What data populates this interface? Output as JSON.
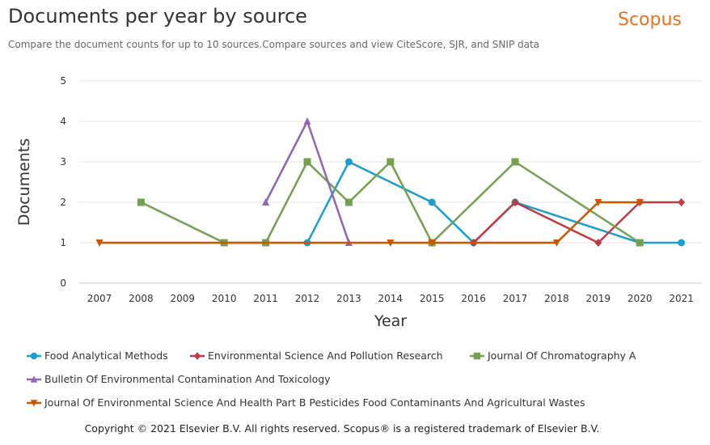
{
  "header": {
    "title": "Documents per year by source",
    "subtitle": "Compare the document counts for up to 10 sources.Compare sources and view CiteScore, SJR, and SNIP data",
    "brand": "Scopus"
  },
  "footer": {
    "copyright": "Copyright © 2021 Elsevier B.V. All rights reserved. Scopus® is a registered trademark of Elsevier B.V."
  },
  "chart_data": {
    "type": "line",
    "title": "Documents per year by source",
    "xlabel": "Year",
    "ylabel": "Documents",
    "categories": [
      "2007",
      "2008",
      "2009",
      "2010",
      "2011",
      "2012",
      "2013",
      "2014",
      "2015",
      "2016",
      "2017",
      "2018",
      "2019",
      "2020",
      "2021"
    ],
    "ylim": [
      0,
      5
    ],
    "yticks": [
      0,
      1,
      2,
      3,
      4,
      5
    ],
    "grid": true,
    "legend_position": "bottom",
    "series": [
      {
        "name": "Food Analytical Methods",
        "color": "#1a9ed0",
        "marker": "circle",
        "points": [
          [
            "2012",
            1
          ],
          [
            "2013",
            3
          ],
          [
            "2015",
            2
          ],
          [
            "2016",
            1
          ],
          [
            "2017",
            2
          ],
          [
            "2020",
            1
          ],
          [
            "2021",
            1
          ]
        ]
      },
      {
        "name": "Environmental Science And Pollution Research",
        "color": "#bf3a43",
        "marker": "diamond",
        "points": [
          [
            "2016",
            1
          ],
          [
            "2017",
            2
          ],
          [
            "2019",
            1
          ],
          [
            "2020",
            2
          ],
          [
            "2021",
            2
          ]
        ]
      },
      {
        "name": "Journal Of Chromatography A",
        "color": "#74a04f",
        "marker": "square",
        "points": [
          [
            "2008",
            2
          ],
          [
            "2010",
            1
          ],
          [
            "2011",
            1
          ],
          [
            "2012",
            3
          ],
          [
            "2013",
            2
          ],
          [
            "2014",
            3
          ],
          [
            "2015",
            1
          ],
          [
            "2017",
            3
          ],
          [
            "2020",
            1
          ]
        ]
      },
      {
        "name": "Bulletin Of Environmental Contamination And Toxicology",
        "color": "#9264b5",
        "marker": "triangle-up",
        "points": [
          [
            "2011",
            2
          ],
          [
            "2012",
            4
          ],
          [
            "2013",
            1
          ]
        ]
      },
      {
        "name": "Journal Of Environmental Science And Health Part B Pesticides Food Contaminants And Agricultural Wastes",
        "color": "#cc5500",
        "marker": "triangle-down",
        "points": [
          [
            "2007",
            1
          ],
          [
            "2014",
            1
          ],
          [
            "2015",
            1
          ],
          [
            "2018",
            1
          ],
          [
            "2019",
            2
          ],
          [
            "2020",
            2
          ]
        ]
      }
    ]
  }
}
